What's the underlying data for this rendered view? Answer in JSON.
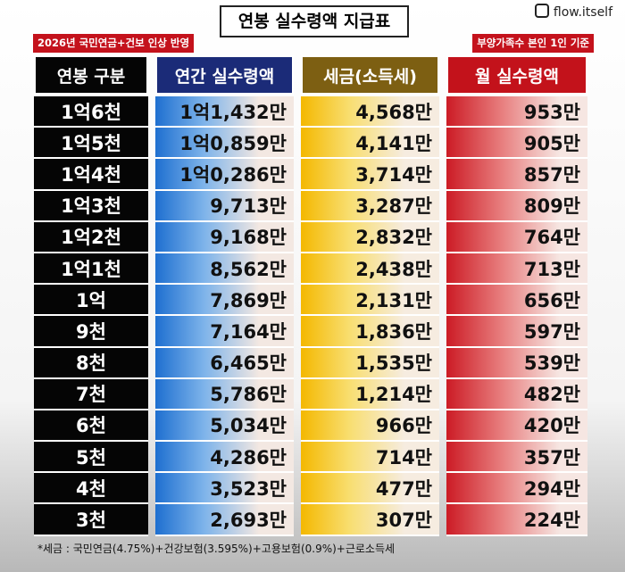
{
  "title": "연봉 실수령액 지급표",
  "left_tag": "2026년 국민연금+건보 인상 반영",
  "right_tag": "부양가족수 본인 1인 기준",
  "watermark": "flow.itself",
  "table": {
    "headers": [
      "연봉 구분",
      "연간 실수령액",
      "세금(소득세)",
      "월 실수령액"
    ],
    "rows": [
      [
        "1억6천",
        "1억1,432만",
        "4,568만",
        "953만"
      ],
      [
        "1억5천",
        "1억0,859만",
        "4,141만",
        "905만"
      ],
      [
        "1억4천",
        "1억0,286만",
        "3,714만",
        "857만"
      ],
      [
        "1억3천",
        "9,713만",
        "3,287만",
        "809만"
      ],
      [
        "1억2천",
        "9,168만",
        "2,832만",
        "764만"
      ],
      [
        "1억1천",
        "8,562만",
        "2,438만",
        "713만"
      ],
      [
        "1억",
        "7,869만",
        "2,131만",
        "656만"
      ],
      [
        "9천",
        "7,164만",
        "1,836만",
        "597만"
      ],
      [
        "8천",
        "6,465만",
        "1,535만",
        "539만"
      ],
      [
        "7천",
        "5,786만",
        "1,214만",
        "482만"
      ],
      [
        "6천",
        "5,034만",
        "966만",
        "420만"
      ],
      [
        "5천",
        "4,286만",
        "714만",
        "357만"
      ],
      [
        "4천",
        "3,523만",
        "477만",
        "294만"
      ],
      [
        "3천",
        "2,693만",
        "307만",
        "224만"
      ]
    ]
  },
  "footnote": "*세금 : 국민연금(4.75%)+건강보험(3.595%)+고용보험(0.9%)+근로소득세"
}
